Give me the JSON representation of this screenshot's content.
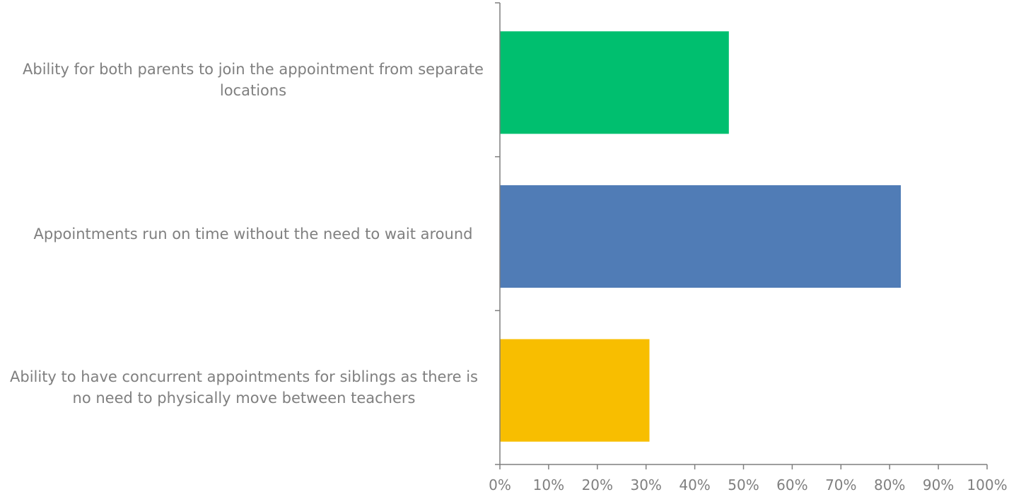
{
  "chart_data": {
    "type": "bar",
    "orientation": "horizontal",
    "categories": [
      "Ability for both parents to join the appointment from separate locations",
      "Appointments run on time without the need to wait around",
      "Ability to have concurrent appointments for siblings as there is no need to physically move between teachers"
    ],
    "values": [
      47,
      82.3,
      30.7
    ],
    "colors": [
      "#00bf6f",
      "#507cb6",
      "#f8be00"
    ],
    "xlim": [
      0,
      100
    ],
    "x_ticks": [
      "0%",
      "10%",
      "20%",
      "30%",
      "40%",
      "50%",
      "60%",
      "70%",
      "80%",
      "90%",
      "100%"
    ],
    "title": "",
    "xlabel": "",
    "ylabel": "",
    "grid": false,
    "legend": "none"
  }
}
